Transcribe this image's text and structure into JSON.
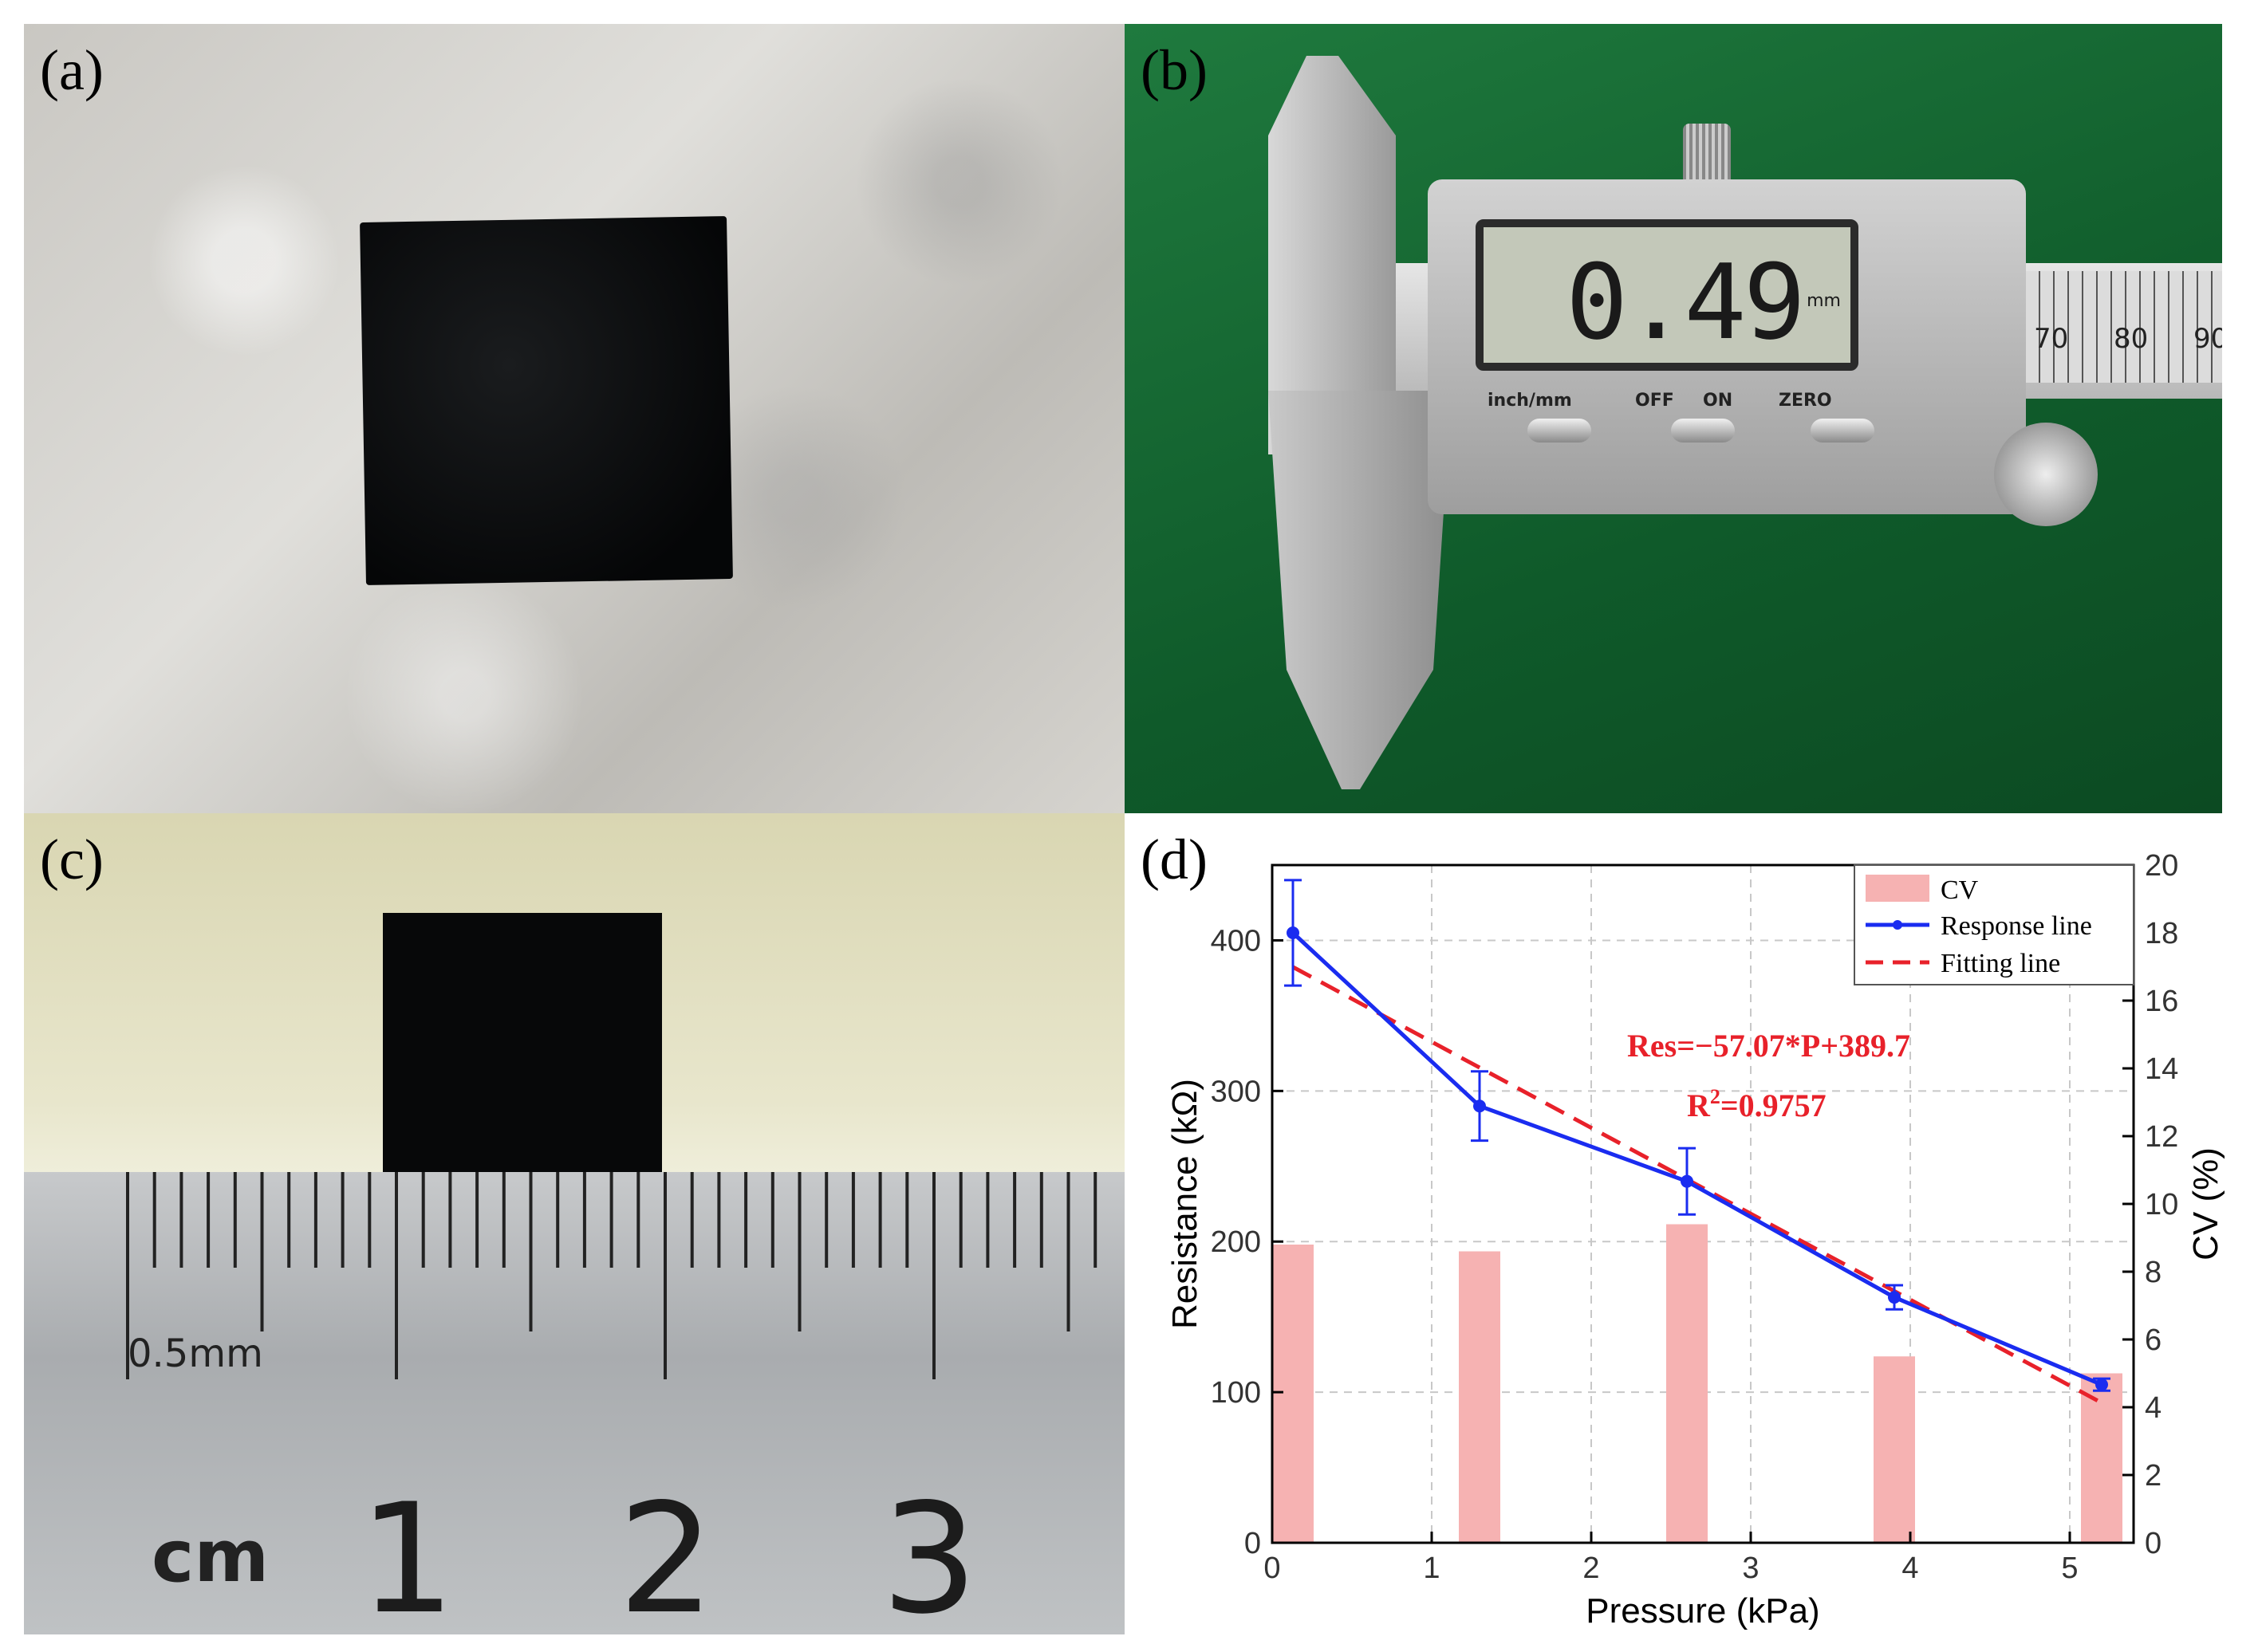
{
  "panels": {
    "a": {
      "label": "(a)"
    },
    "b": {
      "label": "(b)",
      "display_reading": "0.49",
      "display_unit": "mm",
      "display_keys": [
        "inch/mm",
        "OFF",
        "ON",
        "ZERO"
      ],
      "scale_numbers": [
        "70",
        "80",
        "90"
      ]
    },
    "c": {
      "label": "(c)",
      "ruler_small_label": "0.5mm",
      "ruler_cm_label": "cm",
      "ruler_numbers": [
        "1",
        "2",
        "3"
      ]
    },
    "d": {
      "label": "(d)"
    }
  },
  "colors": {
    "response_line": "#1a2cf0",
    "fitting_line": "#e8212a",
    "cv_bar": "#f6b2b2"
  },
  "chart_data": {
    "type": "bar",
    "xlabel": "Pressure (kPa)",
    "ylabel": "Resistance (kΩ)",
    "y2label": "CV (%)",
    "xlim": [
      0,
      5.4
    ],
    "ylim": [
      0,
      450
    ],
    "y2lim": [
      0,
      20
    ],
    "xticks": [
      0,
      1,
      2,
      3,
      4,
      5
    ],
    "yticks": [
      0,
      100,
      200,
      300,
      400
    ],
    "y2ticks": [
      0,
      2,
      4,
      6,
      8,
      10,
      12,
      14,
      16,
      18,
      20
    ],
    "grid": "dashed vertical and horizontal",
    "legend_position": "top-right",
    "series": [
      {
        "name": "CV",
        "kind": "bar",
        "axis": "right",
        "x": [
          0.13,
          1.3,
          2.6,
          3.9,
          5.2
        ],
        "values": [
          8.8,
          8.6,
          9.4,
          5.5,
          5.0
        ]
      },
      {
        "name": "Response line",
        "kind": "line",
        "axis": "left",
        "x": [
          0.13,
          1.3,
          2.6,
          3.9,
          5.2
        ],
        "values": [
          405,
          290,
          240,
          163,
          105
        ],
        "error": [
          35,
          23,
          22,
          8,
          4
        ]
      },
      {
        "name": "Fitting line",
        "kind": "dashed-line",
        "axis": "left",
        "x": [
          0.13,
          5.2
        ],
        "values": [
          382.3,
          92.9
        ]
      }
    ],
    "annotations": [
      {
        "text": "Res=−57.07*P+389.7"
      },
      {
        "text": "R",
        "sup": "2",
        "after": "=0.9757"
      }
    ]
  }
}
